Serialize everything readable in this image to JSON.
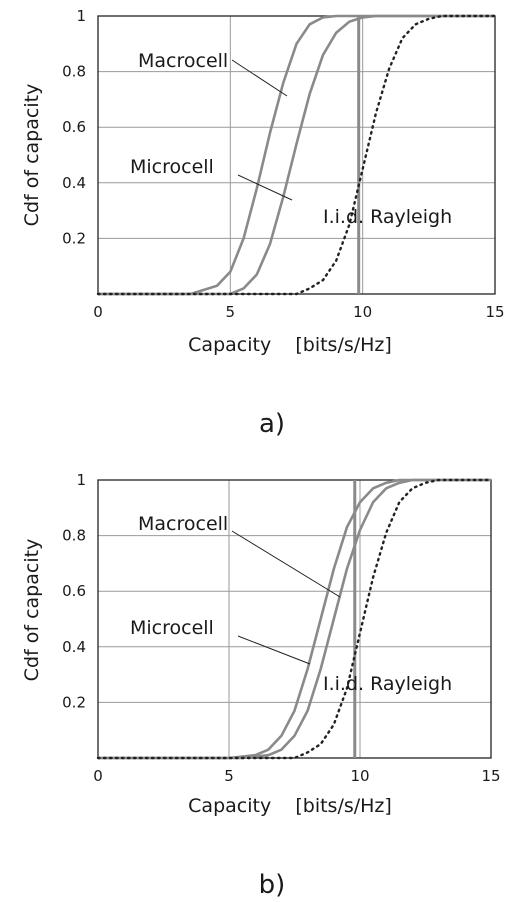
{
  "chart_data": [
    {
      "type": "line",
      "panel_label": "a)",
      "xlabel": "Capacity    [bits/s/Hz]",
      "ylabel": "Cdf  of capacity",
      "xlim": [
        0,
        15
      ],
      "ylim": [
        0,
        1
      ],
      "xticks": [
        "0",
        "5",
        "10",
        "15"
      ],
      "yticks": [
        "0.2",
        "0.4",
        "0.6",
        "0.8",
        "1"
      ],
      "grid": true,
      "vertical_marker_x": 9.85,
      "series": [
        {
          "name": "Macrocell",
          "style": "solid",
          "color": "#8a8a8a",
          "x": [
            3.5,
            4.5,
            5.0,
            5.5,
            6.0,
            6.5,
            7.0,
            7.5,
            8.0,
            8.5,
            9.0,
            15.0
          ],
          "y": [
            0.0,
            0.03,
            0.08,
            0.2,
            0.38,
            0.58,
            0.76,
            0.9,
            0.97,
            0.995,
            1.0,
            1.0
          ]
        },
        {
          "name": "Microcell",
          "style": "solid",
          "color": "#8a8a8a",
          "x": [
            5.0,
            5.5,
            6.0,
            6.5,
            7.0,
            7.5,
            8.0,
            8.5,
            9.0,
            9.5,
            10.0,
            10.5,
            15.0
          ],
          "y": [
            0.0,
            0.02,
            0.07,
            0.18,
            0.35,
            0.54,
            0.72,
            0.86,
            0.94,
            0.98,
            0.995,
            1.0,
            1.0
          ]
        },
        {
          "name": "I.i.d.  Rayleigh",
          "style": "dotted",
          "color": "#222222",
          "x": [
            7.5,
            8.0,
            8.5,
            9.0,
            9.5,
            10.0,
            10.5,
            11.0,
            11.5,
            12.0,
            12.5,
            13.0,
            15.0
          ],
          "y": [
            0.0,
            0.02,
            0.05,
            0.12,
            0.25,
            0.45,
            0.65,
            0.81,
            0.92,
            0.97,
            0.99,
            1.0,
            1.0
          ]
        }
      ]
    },
    {
      "type": "line",
      "panel_label": "b)",
      "xlabel": "Capacity    [bits/s/Hz]",
      "ylabel": "Cdf  of capacity",
      "xlim": [
        0,
        15
      ],
      "ylim": [
        0,
        1
      ],
      "xticks": [
        "0",
        "5",
        "10",
        "15"
      ],
      "yticks": [
        "0.2",
        "0.4",
        "0.6",
        "0.8",
        "1"
      ],
      "grid": true,
      "vertical_marker_x": 9.8,
      "series": [
        {
          "name": "Macrocell",
          "style": "solid",
          "color": "#8a8a8a",
          "x": [
            5.0,
            6.0,
            6.5,
            7.0,
            7.5,
            8.0,
            8.5,
            9.0,
            9.5,
            10.0,
            10.5,
            11.0,
            11.5,
            15.0
          ],
          "y": [
            0.0,
            0.01,
            0.03,
            0.08,
            0.17,
            0.32,
            0.5,
            0.68,
            0.83,
            0.92,
            0.97,
            0.99,
            1.0,
            1.0
          ]
        },
        {
          "name": "Microcell",
          "style": "solid",
          "color": "#8a8a8a",
          "x": [
            5.5,
            6.5,
            7.0,
            7.5,
            8.0,
            8.5,
            9.0,
            9.5,
            10.0,
            10.5,
            11.0,
            11.5,
            12.0,
            15.0
          ],
          "y": [
            0.0,
            0.01,
            0.03,
            0.08,
            0.17,
            0.32,
            0.5,
            0.68,
            0.82,
            0.92,
            0.97,
            0.99,
            1.0,
            1.0
          ]
        },
        {
          "name": "I.i.d.  Rayleigh",
          "style": "dotted",
          "color": "#222222",
          "x": [
            7.5,
            8.0,
            8.5,
            9.0,
            9.5,
            10.0,
            10.5,
            11.0,
            11.5,
            12.0,
            12.5,
            13.0,
            15.0
          ],
          "y": [
            0.0,
            0.02,
            0.05,
            0.12,
            0.25,
            0.45,
            0.65,
            0.81,
            0.92,
            0.97,
            0.99,
            1.0,
            1.0
          ]
        }
      ]
    }
  ]
}
